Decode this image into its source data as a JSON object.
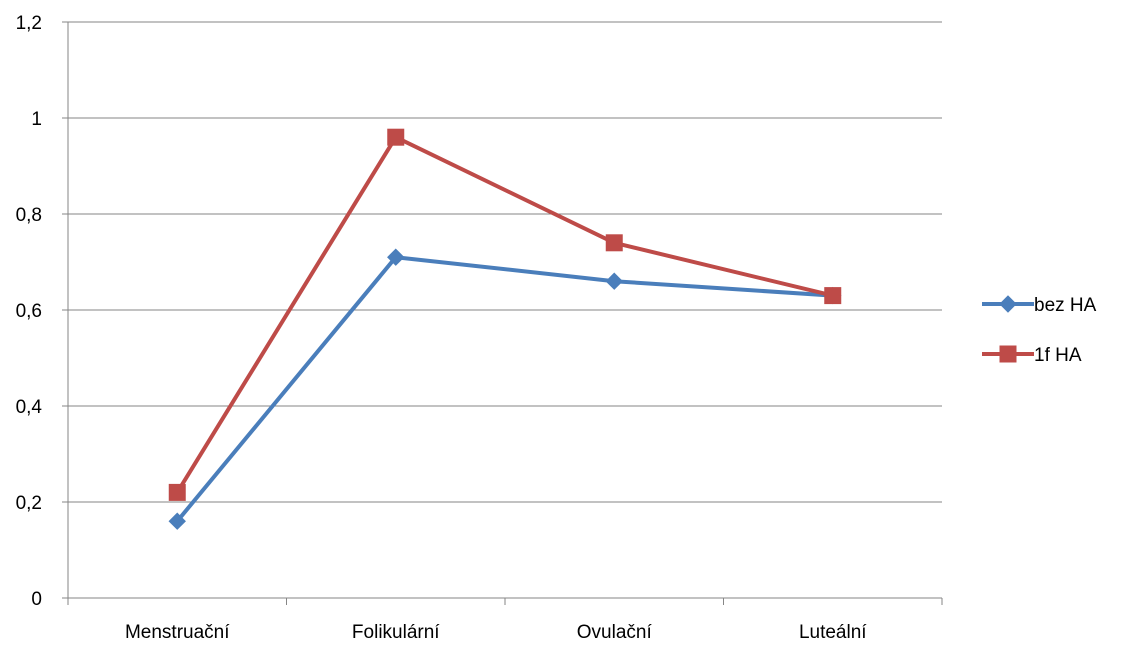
{
  "chart_data": {
    "type": "line",
    "title": "",
    "xlabel": "",
    "ylabel": "",
    "categories": [
      "Menstruační",
      "Folikulární",
      "Ovulační",
      "Luteální"
    ],
    "ylim": [
      0,
      1.2
    ],
    "yticks": [
      0,
      0.2,
      0.4,
      0.6,
      0.8,
      1,
      1.2
    ],
    "ytick_labels": [
      "0",
      "0,2",
      "0,4",
      "0,6",
      "0,8",
      "1",
      "1,2"
    ],
    "grid": true,
    "legend_position": "right",
    "series": [
      {
        "name": "bez HA",
        "values": [
          0.16,
          0.71,
          0.66,
          0.63
        ],
        "color": "#4a7ebb",
        "marker": "diamond"
      },
      {
        "name": "1f HA",
        "values": [
          0.22,
          0.96,
          0.74,
          0.63
        ],
        "color": "#be4b48",
        "marker": "square"
      }
    ]
  }
}
